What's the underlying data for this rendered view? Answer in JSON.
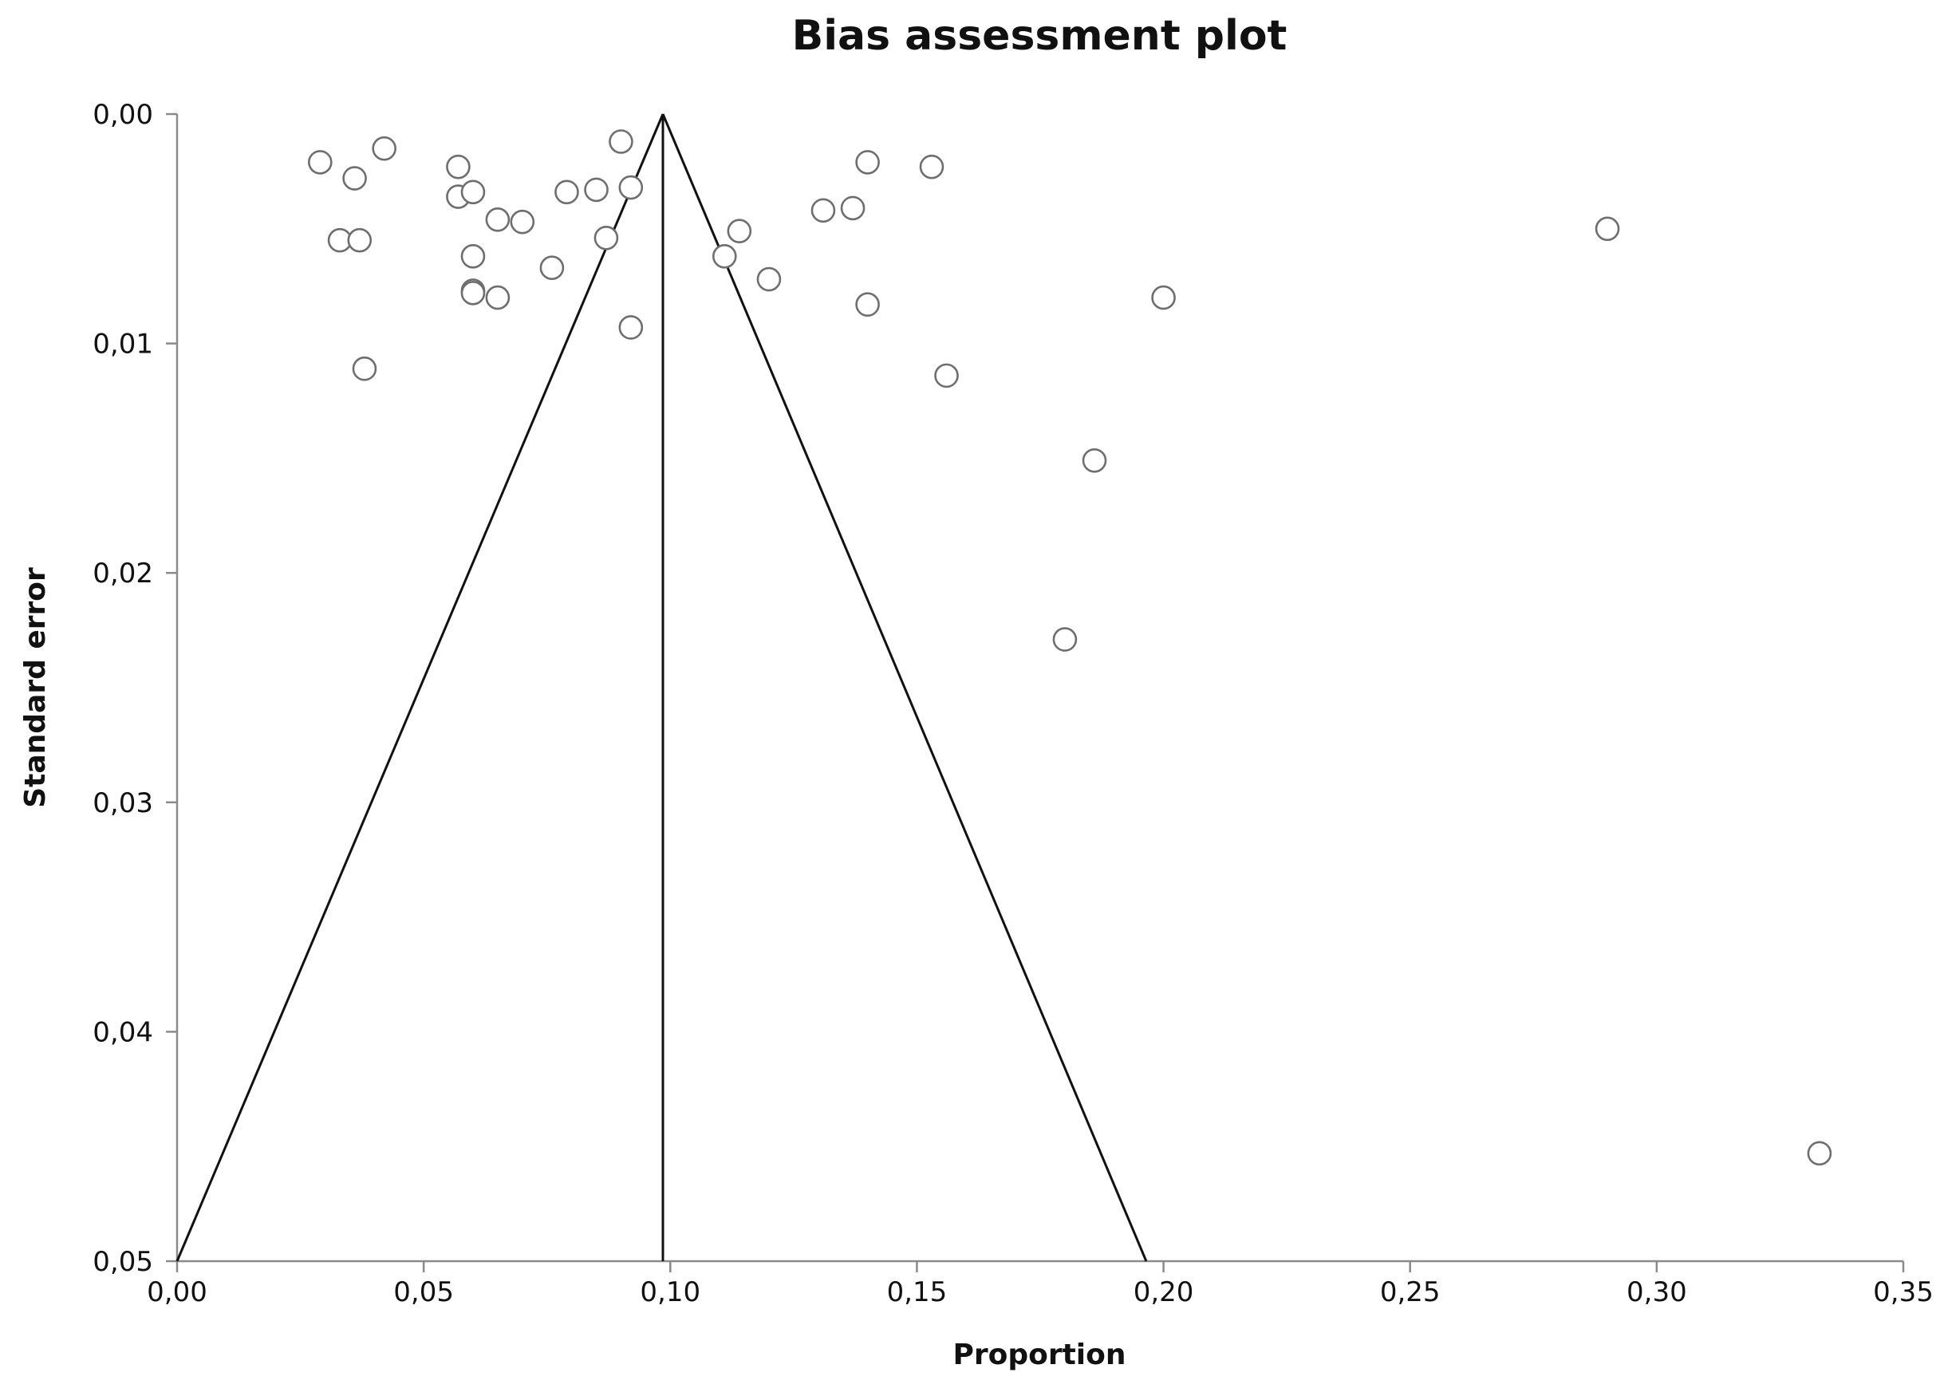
{
  "chart_data": {
    "type": "scatter",
    "title": "Bias assessment plot",
    "xlabel": "Proportion",
    "ylabel": "Standard error",
    "xlim": [
      0,
      0.35
    ],
    "ylim": [
      0,
      0.05
    ],
    "y_axis_inverted": true,
    "x_ticks": [
      "0,00",
      "0,05",
      "0,10",
      "0,15",
      "0,20",
      "0,25",
      "0,30",
      "0,35"
    ],
    "y_ticks": [
      "0,00",
      "0,01",
      "0,02",
      "0,03",
      "0,04",
      "0,05"
    ],
    "grid": false,
    "legend": "none",
    "funnel": {
      "center": 0.0985,
      "left_bottom": 0.0,
      "right_bottom": 0.1965,
      "apex_se": 0.0,
      "base_se": 0.05
    },
    "points": [
      {
        "x": 0.029,
        "y": 0.0021
      },
      {
        "x": 0.036,
        "y": 0.0028
      },
      {
        "x": 0.042,
        "y": 0.0015
      },
      {
        "x": 0.033,
        "y": 0.0055
      },
      {
        "x": 0.037,
        "y": 0.0055
      },
      {
        "x": 0.057,
        "y": 0.0023
      },
      {
        "x": 0.057,
        "y": 0.0036
      },
      {
        "x": 0.06,
        "y": 0.0034
      },
      {
        "x": 0.06,
        "y": 0.0062
      },
      {
        "x": 0.06,
        "y": 0.0077
      },
      {
        "x": 0.06,
        "y": 0.0078
      },
      {
        "x": 0.065,
        "y": 0.0046
      },
      {
        "x": 0.07,
        "y": 0.0047
      },
      {
        "x": 0.065,
        "y": 0.008
      },
      {
        "x": 0.038,
        "y": 0.0111
      },
      {
        "x": 0.076,
        "y": 0.0067
      },
      {
        "x": 0.079,
        "y": 0.0034
      },
      {
        "x": 0.085,
        "y": 0.0033
      },
      {
        "x": 0.087,
        "y": 0.0054
      },
      {
        "x": 0.09,
        "y": 0.0012
      },
      {
        "x": 0.092,
        "y": 0.0032
      },
      {
        "x": 0.092,
        "y": 0.0093
      },
      {
        "x": 0.111,
        "y": 0.0062
      },
      {
        "x": 0.114,
        "y": 0.0051
      },
      {
        "x": 0.12,
        "y": 0.0072
      },
      {
        "x": 0.131,
        "y": 0.0042
      },
      {
        "x": 0.137,
        "y": 0.0041
      },
      {
        "x": 0.14,
        "y": 0.0021
      },
      {
        "x": 0.14,
        "y": 0.0083
      },
      {
        "x": 0.153,
        "y": 0.0023
      },
      {
        "x": 0.156,
        "y": 0.0114
      },
      {
        "x": 0.186,
        "y": 0.0151
      },
      {
        "x": 0.18,
        "y": 0.0229
      },
      {
        "x": 0.2,
        "y": 0.008
      },
      {
        "x": 0.29,
        "y": 0.005
      },
      {
        "x": 0.333,
        "y": 0.0453
      }
    ]
  }
}
